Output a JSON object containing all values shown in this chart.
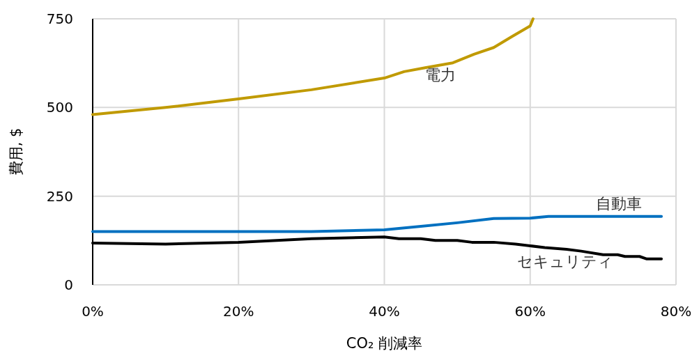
{
  "chart_data": {
    "type": "line",
    "xlabel": "CO₂ 削減率",
    "ylabel": "費用, $",
    "xlim": [
      0,
      80
    ],
    "xticks": [
      {
        "value": 0,
        "label": "0%"
      },
      {
        "value": 20,
        "label": "20%"
      },
      {
        "value": 40,
        "label": "40%"
      },
      {
        "value": 60,
        "label": "60%"
      },
      {
        "value": 80,
        "label": "80%"
      }
    ],
    "ylim": [
      0,
      750
    ],
    "yticks": [
      0,
      250,
      500,
      750
    ],
    "grid": true,
    "series": [
      {
        "name": "電力",
        "color": "#c09a00",
        "x": [
          0,
          10,
          20,
          30,
          40,
          42.7,
          45.6,
          49.4,
          52.3,
          55,
          57.5,
          60,
          60.4
        ],
        "values": [
          480,
          500,
          524,
          550,
          583,
          601,
          612,
          626,
          650,
          669,
          700,
          730,
          750
        ]
      },
      {
        "name": "自動車",
        "color": "#0070c0",
        "x": [
          0,
          10,
          20,
          30,
          40,
          45,
          50,
          55,
          60,
          62.5,
          70,
          78
        ],
        "values": [
          150,
          150,
          150,
          150,
          155,
          165,
          175,
          187,
          188,
          193,
          193,
          193
        ]
      },
      {
        "name": "セキュリティ",
        "color": "#000000",
        "x": [
          0,
          10,
          20,
          30,
          40,
          42,
          45,
          47,
          50,
          52,
          55,
          58,
          60,
          62,
          65,
          67,
          70,
          72,
          73,
          75,
          76,
          78
        ],
        "values": [
          118,
          115,
          120,
          130,
          135,
          130,
          130,
          125,
          125,
          120,
          120,
          115,
          110,
          105,
          100,
          95,
          85,
          85,
          80,
          80,
          73,
          73
        ]
      }
    ]
  }
}
